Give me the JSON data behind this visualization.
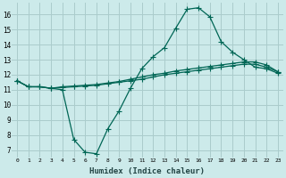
{
  "xlabel": "Humidex (Indice chaleur)",
  "ylabel": "",
  "bg_color": "#cceaea",
  "grid_color": "#aacccc",
  "line_color": "#006655",
  "xlim": [
    -0.5,
    23.5
  ],
  "ylim": [
    6.5,
    16.8
  ],
  "xticks": [
    0,
    1,
    2,
    3,
    4,
    5,
    6,
    7,
    8,
    9,
    10,
    11,
    12,
    13,
    14,
    15,
    16,
    17,
    18,
    19,
    20,
    21,
    22,
    23
  ],
  "yticks": [
    7,
    8,
    9,
    10,
    11,
    12,
    13,
    14,
    15,
    16
  ],
  "line1_x": [
    0,
    1,
    2,
    3,
    4,
    5,
    6,
    7,
    8,
    9,
    10,
    11,
    12,
    13,
    14,
    15,
    16,
    17,
    18,
    19,
    20,
    21,
    22,
    23
  ],
  "line1_y": [
    11.6,
    11.2,
    11.2,
    11.1,
    11.0,
    7.7,
    6.85,
    6.75,
    8.4,
    9.6,
    11.1,
    12.4,
    13.2,
    13.8,
    15.1,
    16.35,
    16.45,
    15.85,
    14.2,
    13.5,
    13.0,
    12.5,
    12.4,
    12.1
  ],
  "line2_x": [
    0,
    1,
    2,
    3,
    4,
    5,
    6,
    7,
    8,
    9,
    10,
    11,
    12,
    13,
    14,
    15,
    16,
    17,
    18,
    19,
    20,
    21,
    22,
    23
  ],
  "line2_y": [
    11.6,
    11.2,
    11.2,
    11.1,
    11.15,
    11.2,
    11.25,
    11.3,
    11.4,
    11.5,
    11.6,
    11.7,
    11.85,
    12.0,
    12.1,
    12.2,
    12.3,
    12.4,
    12.5,
    12.6,
    12.7,
    12.7,
    12.5,
    12.2
  ],
  "line3_x": [
    0,
    1,
    2,
    3,
    4,
    5,
    6,
    7,
    8,
    9,
    10,
    11,
    12,
    13,
    14,
    15,
    16,
    17,
    18,
    19,
    20,
    21,
    22,
    23
  ],
  "line3_y": [
    11.6,
    11.2,
    11.2,
    11.1,
    11.2,
    11.25,
    11.3,
    11.35,
    11.45,
    11.55,
    11.7,
    11.85,
    12.0,
    12.1,
    12.25,
    12.35,
    12.45,
    12.55,
    12.65,
    12.75,
    12.85,
    12.85,
    12.65,
    12.2
  ]
}
